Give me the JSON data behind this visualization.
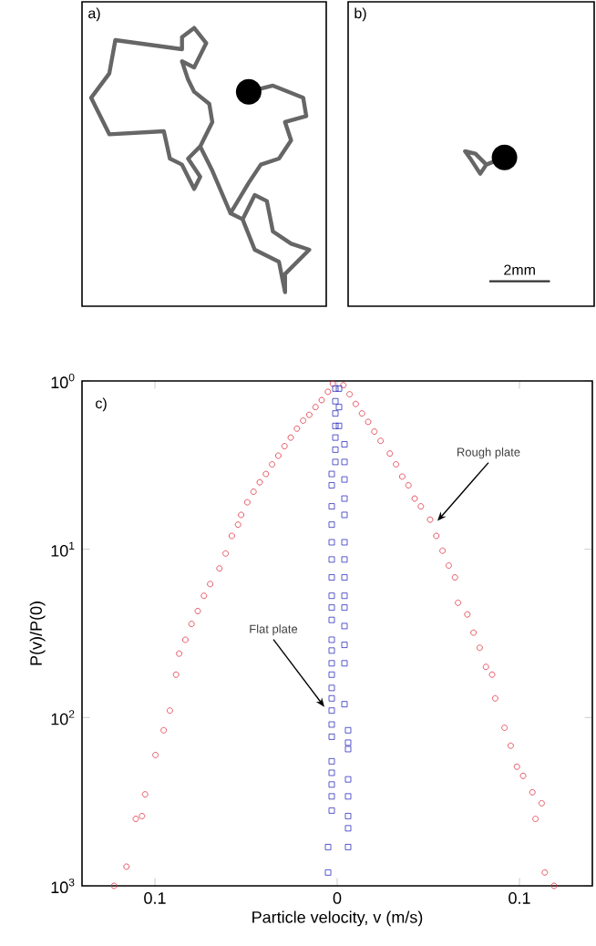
{
  "chart_data": [
    {
      "type": "other",
      "title": "a)"
    },
    {
      "type": "other",
      "title": "b)",
      "annotations": [
        "2mm"
      ]
    },
    {
      "type": "scatter",
      "title": "c)",
      "xlabel": "Particle velocity, v (m/s)",
      "ylabel": "P(v)/P(0)",
      "log": "y",
      "grid": false,
      "xlim": [
        -0.14,
        0.14
      ],
      "ylim": [
        1000,
        1
      ],
      "xticks": [
        {
          "value": -0.1,
          "label": "0.1"
        },
        0,
        0.1
      ],
      "yticks": [
        {
          "value": 1000,
          "label": "10$^{3}$"
        },
        {
          "value": 100,
          "label": "10$^{2}$"
        },
        {
          "value": 10,
          "label": "10$^{1}$"
        },
        {
          "value": 1,
          "label": "10$^{0}$"
        }
      ],
      "series": [
        {
          "color": "#e03040",
          "marker": "circle",
          "x": [
            -0.0024,
            -0.0051,
            -0.0085,
            -0.0119,
            -0.0153,
            -0.0187,
            -0.0221,
            -0.0255,
            -0.0289,
            -0.0323,
            -0.0357,
            -0.0391,
            -0.0425,
            -0.0459,
            -0.0493,
            -0.0527,
            -0.0544,
            -0.0578,
            -0.0612,
            -0.0646,
            -0.0697,
            -0.0731,
            -0.0765,
            -0.0799,
            -0.0833,
            -0.0867,
            -0.0884,
            -0.0918,
            -0.0952,
            -0.0997,
            -0.1054,
            -0.1071,
            -0.1105,
            -0.1156,
            -0.1224,
            0.0034,
            0.0068,
            0.0102,
            0.0136,
            0.017,
            0.0204,
            0.0238,
            0.0289,
            0.0323,
            0.0357,
            0.0391,
            0.0425,
            0.0459,
            0.051,
            0.0544,
            0.0578,
            0.0612,
            0.0646,
            0.0663,
            0.0714,
            0.0748,
            0.0782,
            0.0816,
            0.085,
            0.0867,
            0.0918,
            0.0952,
            0.0986,
            0.102,
            0.1071,
            0.1088,
            0.1122,
            0.1139,
            0.119
          ],
          "values": [
            1.04,
            1.16,
            1.3,
            1.43,
            1.59,
            1.72,
            1.92,
            2.17,
            2.44,
            2.78,
            3.13,
            3.57,
            4,
            4.55,
            5.26,
            6.25,
            7.14,
            8.33,
            10.6,
            13,
            16.1,
            18.9,
            23.3,
            27.8,
            34.5,
            41.7,
            55.6,
            90.9,
            119,
            167,
            286,
            385,
            400,
            769,
            1000,
            1.06,
            1.2,
            1.37,
            1.56,
            1.75,
            2,
            2.27,
            2.7,
            3.13,
            3.7,
            4.17,
            5,
            5.56,
            6.67,
            8.33,
            10.2,
            12.5,
            14.7,
            20.8,
            24.4,
            31.3,
            38.5,
            50,
            55.6,
            76.9,
            115,
            147,
            196,
            222,
            278,
            400,
            323,
            833,
            1000
          ]
        },
        {
          "color": "#3030c0",
          "marker": "square",
          "x": [
            -0.001,
            -0.001,
            -0.001,
            -0.001,
            -0.001,
            -0.001,
            -0.001,
            -0.003,
            -0.003,
            -0.003,
            -0.003,
            -0.003,
            -0.003,
            -0.003,
            -0.003,
            -0.003,
            -0.003,
            -0.003,
            -0.003,
            -0.003,
            -0.003,
            -0.003,
            -0.003,
            -0.003,
            -0.003,
            -0.003,
            -0.003,
            -0.003,
            -0.003,
            -0.003,
            -0.003,
            -0.005,
            -0.005,
            0.001,
            0.001,
            0.001,
            0.004,
            0.004,
            0.004,
            0.004,
            0.004,
            0.004,
            0.004,
            0.004,
            0.004,
            0.004,
            0.004,
            0.004,
            0.004,
            0.004,
            0.006,
            0.006,
            0.006,
            0.006,
            0.006,
            0.006,
            0.006,
            0.006
          ],
          "values": [
            1.11,
            1.32,
            1.56,
            1.85,
            2.17,
            2.56,
            3.03,
            3.57,
            4.17,
            5.56,
            7.14,
            9.09,
            11.5,
            14.7,
            18.9,
            22.2,
            26.3,
            34.5,
            40,
            47.6,
            55.6,
            66.7,
            76.9,
            90.9,
            110,
            130,
            182,
            213,
            250,
            294,
            357,
            588,
            833,
            1.11,
            1.43,
            1.85,
            2.38,
            3.03,
            3.85,
            5,
            6.25,
            9.09,
            11.5,
            14.7,
            18.9,
            22.2,
            28.6,
            37,
            47.6,
            83.3,
            119,
            141,
            154,
            233,
            294,
            385,
            455,
            588
          ]
        }
      ],
      "annotations": [
        {
          "text": "Rough plate",
          "x": 0.053,
          "y": 7.14
        },
        {
          "text": "Flat plate",
          "x": -0.005,
          "y": 90.9
        }
      ]
    }
  ]
}
